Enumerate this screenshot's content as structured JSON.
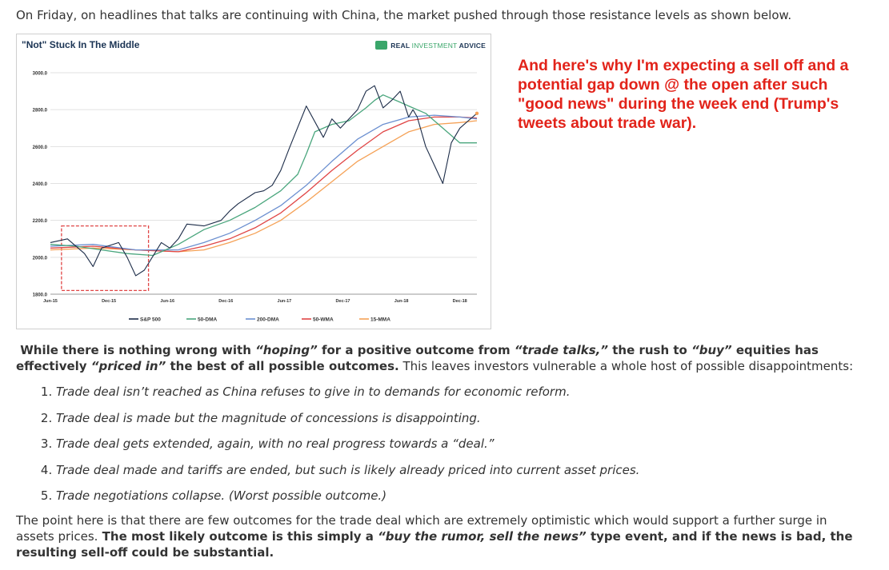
{
  "intro_text": "On Friday, on headlines that talks are continuing with China, the market pushed through those resistance levels as shown below.",
  "chart_data": {
    "type": "line",
    "title": "\"Not\" Stuck In The Middle",
    "brand": {
      "a": "REAL",
      "b": "INVESTMENT",
      "c": "ADVICE"
    },
    "ylim": [
      1800,
      3000
    ],
    "yticks": [
      "3000.0",
      "2800.0",
      "2600.0",
      "2400.0",
      "2200.0",
      "2000.0",
      "1800.0"
    ],
    "xticks": [
      "Jun-15",
      "Dec-15",
      "Jun-16",
      "Dec-16",
      "Jun-17",
      "Dec-17",
      "Jun-18",
      "Dec-18"
    ],
    "x_range": [
      0,
      50
    ],
    "grid": "horizontal",
    "legend_position": "bottom",
    "colors": {
      "S&P 500": "#1c2c48",
      "50-DMA": "#4aa67d",
      "200-DMA": "#6b8fd0",
      "50-WMA": "#e04545",
      "15-MMA": "#f5a156",
      "highlight": "#e04545"
    },
    "series": [
      {
        "name": "S&P 500",
        "x": [
          0,
          2,
          4,
          5,
          6,
          8,
          9,
          10,
          11,
          13,
          14,
          15,
          16,
          18,
          20,
          21,
          22,
          24,
          25,
          26,
          27,
          28,
          30,
          32,
          33,
          34,
          36,
          37,
          38,
          39,
          40,
          41,
          42,
          42.5,
          43,
          44,
          45,
          46,
          47,
          48,
          49,
          50
        ],
        "y": [
          2080,
          2100,
          2020,
          1950,
          2050,
          2080,
          2000,
          1900,
          1930,
          2080,
          2050,
          2100,
          2180,
          2170,
          2200,
          2250,
          2290,
          2350,
          2360,
          2390,
          2470,
          2590,
          2820,
          2650,
          2750,
          2700,
          2800,
          2900,
          2930,
          2810,
          2850,
          2900,
          2760,
          2800,
          2760,
          2600,
          2500,
          2400,
          2620,
          2700,
          2740,
          2780
        ]
      },
      {
        "name": "50-DMA",
        "x": [
          0,
          3,
          6,
          9,
          12,
          15,
          18,
          21,
          24,
          27,
          29,
          30,
          31,
          33,
          35,
          37,
          38,
          39,
          41,
          42,
          44,
          46,
          48,
          50
        ],
        "y": [
          2070,
          2060,
          2040,
          2020,
          2010,
          2070,
          2150,
          2200,
          2270,
          2360,
          2450,
          2560,
          2680,
          2720,
          2740,
          2810,
          2850,
          2880,
          2840,
          2820,
          2780,
          2700,
          2620,
          2620
        ]
      },
      {
        "name": "200-DMA",
        "x": [
          0,
          5,
          10,
          15,
          18,
          21,
          24,
          27,
          30,
          33,
          36,
          39,
          42,
          45,
          48,
          50
        ],
        "y": [
          2060,
          2070,
          2040,
          2040,
          2080,
          2130,
          2200,
          2280,
          2390,
          2520,
          2640,
          2720,
          2760,
          2770,
          2760,
          2750
        ]
      },
      {
        "name": "50-WMA",
        "x": [
          0,
          5,
          10,
          15,
          18,
          21,
          24,
          27,
          30,
          33,
          36,
          39,
          42,
          45,
          48,
          50
        ],
        "y": [
          2050,
          2060,
          2040,
          2030,
          2060,
          2100,
          2160,
          2240,
          2350,
          2470,
          2580,
          2680,
          2740,
          2760,
          2760,
          2755
        ]
      },
      {
        "name": "15-MMA",
        "x": [
          0,
          5,
          10,
          15,
          18,
          21,
          24,
          27,
          30,
          33,
          36,
          39,
          42,
          45,
          48,
          50
        ],
        "y": [
          2040,
          2050,
          2040,
          2030,
          2040,
          2080,
          2130,
          2200,
          2300,
          2410,
          2520,
          2600,
          2680,
          2720,
          2730,
          2740
        ]
      }
    ]
  },
  "red_note": "And here's why I'm expecting a sell off and a potential gap down @ the open after such \"good news\" during the week end (Trump's tweets about trade war).",
  "para1": {
    "b1": "While there is nothing wrong with ",
    "i1": "“hoping”",
    "b2": " for a positive outcome from ",
    "i2": "“trade talks,”",
    "b3": " the rush to ",
    "i3": "“buy”",
    "b4": " equities has effectively ",
    "i4": "“priced in”",
    "b5": " the best of all possible outcomes.",
    "t1": " This leaves investors vulnerable a whole host of possible disappointments:"
  },
  "list_items": [
    "Trade deal isn’t reached as China refuses to give in to demands for economic reform.",
    "Trade deal is made but the magnitude of concessions is disappointing.",
    "Trade deal gets extended, again, with no real progress towards a “deal.”",
    "Trade deal made and tariffs are ended, but such is likely already priced into current asset prices.",
    "Trade negotiations collapse. (Worst possible outcome.)"
  ],
  "para2": {
    "t1": "The point here is that there are few outcomes for the trade deal which are extremely optimistic which would support a further surge in assets prices.",
    "b1": " The most likely outcome is this simply a ",
    "i1": "“buy the rumor, sell the news”",
    "b2": " type event, and if the news is bad, the resulting sell-off could be substantial."
  }
}
